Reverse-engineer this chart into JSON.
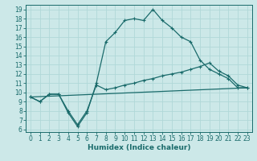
{
  "xlabel": "Humidex (Indice chaleur)",
  "bg_color": "#cce8e8",
  "grid_color": "#b0d8d8",
  "line_color": "#1a6b6b",
  "xlim": [
    -0.5,
    23.5
  ],
  "ylim": [
    5.7,
    19.5
  ],
  "yticks": [
    6,
    7,
    8,
    9,
    10,
    11,
    12,
    13,
    14,
    15,
    16,
    17,
    18,
    19
  ],
  "xticks": [
    0,
    1,
    2,
    3,
    4,
    5,
    6,
    7,
    8,
    9,
    10,
    11,
    12,
    13,
    14,
    15,
    16,
    17,
    18,
    19,
    20,
    21,
    22,
    23
  ],
  "line1_x": [
    0,
    1,
    2,
    3,
    4,
    5,
    6,
    7,
    8,
    9,
    10,
    11,
    12,
    13,
    14,
    15,
    16,
    17,
    18,
    19,
    20,
    21,
    22,
    23
  ],
  "line1_y": [
    9.5,
    9.0,
    9.8,
    9.8,
    7.8,
    6.3,
    7.8,
    11.0,
    15.5,
    16.5,
    17.8,
    18.0,
    17.8,
    19.0,
    17.8,
    17.0,
    16.0,
    15.5,
    13.5,
    12.5,
    12.0,
    11.5,
    10.5,
    10.5
  ],
  "line2_x": [
    0,
    1,
    2,
    3,
    4,
    5,
    6,
    7,
    8,
    9,
    10,
    11,
    12,
    13,
    14,
    15,
    16,
    17,
    18,
    19,
    20,
    21,
    22,
    23
  ],
  "line2_y": [
    9.5,
    9.0,
    9.8,
    9.8,
    8.0,
    6.5,
    8.0,
    10.8,
    10.3,
    10.5,
    10.8,
    11.0,
    11.3,
    11.5,
    11.8,
    12.0,
    12.2,
    12.5,
    12.8,
    13.2,
    12.3,
    11.8,
    10.8,
    10.5
  ],
  "line3_x": [
    0,
    23
  ],
  "line3_y": [
    9.5,
    10.5
  ],
  "fontsize_label": 6.5,
  "fontsize_tick": 5.5,
  "marker": "+"
}
